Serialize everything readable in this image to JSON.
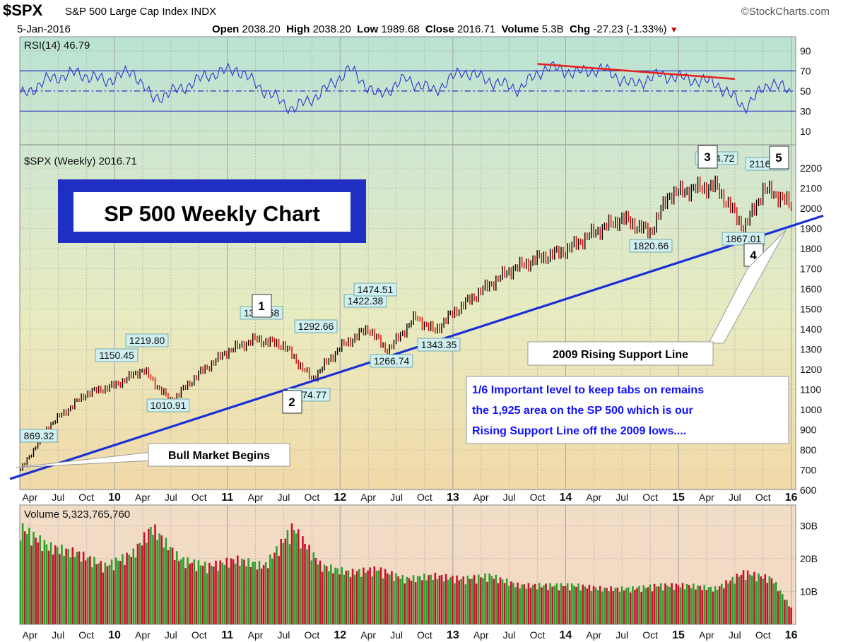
{
  "header": {
    "ticker": "$SPX",
    "name": "S&P 500 Large Cap Index",
    "exchange": "INDX",
    "source": "©StockCharts.com",
    "date": "5-Jan-2016",
    "open_label": "Open",
    "open": "2038.20",
    "high_label": "High",
    "high": "2038.20",
    "low_label": "Low",
    "low": "1989.68",
    "close_label": "Close",
    "close": "2016.71",
    "volume_label": "Volume",
    "volume": "5.3B",
    "chg_label": "Chg",
    "chg": "-27.23 (-1.33%)",
    "chg_arrow": "▼"
  },
  "colors": {
    "up_bar": "#000000",
    "down_bar": "#e00000",
    "rsi_line": "#3333cc",
    "support_line": "#1a2fd8",
    "rsi_trend_line": "#e82020",
    "up_volume": "#2e9e2e",
    "down_volume": "#c8102e",
    "title_box": "#1f2fc4",
    "note_text": "#1010ff"
  },
  "chart_data": [
    {
      "panel": "rsi",
      "type": "line",
      "label": "RSI(14) 46.79",
      "indicator": "RSI(14)",
      "last_value": 46.79,
      "ylim": [
        0,
        100
      ],
      "y_ticks": [
        "90",
        "70",
        "50",
        "30",
        "10"
      ],
      "reference_lines": [
        70,
        50,
        30
      ],
      "trend_line": {
        "x": [
          "2013-10",
          "2015-07"
        ],
        "y": [
          77,
          62
        ]
      },
      "approx_monthly_values": {
        "x": [
          "2009-03",
          "2009-06",
          "2009-09",
          "2009-12",
          "2010-03",
          "2010-05",
          "2010-08",
          "2010-11",
          "2011-02",
          "2011-05",
          "2011-08",
          "2011-11",
          "2012-02",
          "2012-05",
          "2012-08",
          "2012-11",
          "2013-02",
          "2013-05",
          "2013-08",
          "2013-11",
          "2014-02",
          "2014-05",
          "2014-08",
          "2014-11",
          "2015-02",
          "2015-05",
          "2015-08",
          "2015-11",
          "2016-01"
        ],
        "y": [
          45,
          62,
          68,
          60,
          70,
          42,
          52,
          66,
          72,
          50,
          32,
          48,
          72,
          45,
          62,
          50,
          70,
          60,
          52,
          74,
          68,
          72,
          56,
          66,
          62,
          58,
          34,
          60,
          47
        ]
      }
    },
    {
      "panel": "price",
      "type": "candlestick",
      "label": "$SPX (Weekly) 2016.71",
      "title_box": "SP 500 Weekly Chart",
      "last_value": 2016.71,
      "ylim": [
        600,
        2200
      ],
      "y_ticks": [
        "2200",
        "2100",
        "2000",
        "1900",
        "1800",
        "1700",
        "1600",
        "1500",
        "1400",
        "1300",
        "1200",
        "1100",
        "1000",
        "900",
        "800",
        "700",
        "600"
      ],
      "x_tick_labels": [
        "Apr",
        "Jul",
        "Oct",
        "10",
        "Apr",
        "Jul",
        "Oct",
        "11",
        "Apr",
        "Jul",
        "Oct",
        "12",
        "Apr",
        "Jul",
        "Oct",
        "13",
        "Apr",
        "Jul",
        "Oct",
        "14",
        "Apr",
        "Jul",
        "Oct",
        "15",
        "Apr",
        "Jul",
        "Oct",
        "16"
      ],
      "approx_closes": {
        "x": [
          "2009-03",
          "2009-06",
          "2009-08",
          "2009-10",
          "2010-01",
          "2010-04",
          "2010-07",
          "2010-10",
          "2011-01",
          "2011-04",
          "2011-07",
          "2011-10",
          "2012-01",
          "2012-04",
          "2012-06",
          "2012-09",
          "2012-11",
          "2013-01",
          "2013-04",
          "2013-07",
          "2013-10",
          "2014-01",
          "2014-04",
          "2014-07",
          "2014-10",
          "2014-12",
          "2015-03",
          "2015-05",
          "2015-08",
          "2015-10",
          "2015-11",
          "2016-01"
        ],
        "y": [
          700,
          920,
          1000,
          1080,
          1120,
          1200,
          1040,
          1180,
          1290,
          1350,
          1320,
          1150,
          1310,
          1405,
          1290,
          1460,
          1390,
          1480,
          1590,
          1690,
          1750,
          1790,
          1880,
          1950,
          1880,
          2070,
          2100,
          2110,
          1900,
          2090,
          2080,
          2016
        ]
      },
      "point_labels": [
        {
          "text": "869.32",
          "x": "2009-07",
          "y": 869.32
        },
        {
          "text": "1150.45",
          "x": "2010-01",
          "y": 1150.45
        },
        {
          "text": "1219.80",
          "x": "2010-04",
          "y": 1219.8
        },
        {
          "text": "1010.91",
          "x": "2010-07",
          "y": 1010.91
        },
        {
          "text": "1370.58",
          "x": "2011-04",
          "y": 1370.58
        },
        {
          "text": "1292.66",
          "x": "2011-10",
          "y": 1292.66
        },
        {
          "text": "1074.77",
          "x": "2011-10",
          "y": 1074.77
        },
        {
          "text": "1422.38",
          "x": "2012-04",
          "y": 1422.38
        },
        {
          "text": "1266.74",
          "x": "2012-06",
          "y": 1266.74
        },
        {
          "text": "1474.51",
          "x": "2012-09",
          "y": 1474.51
        },
        {
          "text": "1343.35",
          "x": "2012-11",
          "y": 1343.35
        },
        {
          "text": "1820.66",
          "x": "2014-10",
          "y": 1820.66
        },
        {
          "text": "2134.72",
          "x": "2015-05",
          "y": 2134.72
        },
        {
          "text": "1867.01",
          "x": "2015-08",
          "y": 1867.01
        },
        {
          "text": "2116.48",
          "x": "2015-11",
          "y": 2116.48
        }
      ],
      "wave_labels": [
        "1",
        "2",
        "3",
        "4",
        "5"
      ],
      "support_line": {
        "x": [
          "2009-03",
          "2016-01"
        ],
        "y": [
          666,
          1925
        ]
      },
      "annotations": {
        "support_label": "2009 Rising Support Line",
        "bull_label": "Bull Market Begins",
        "note_lines": [
          "1/6  Important level to keep tabs on remains",
          "the 1,925 area on the SP 500 which is our",
          "Rising Support Line off the 2009 lows...."
        ]
      }
    },
    {
      "panel": "volume",
      "type": "bar",
      "label": "Volume 5,323,765,760",
      "ylim": [
        0,
        35
      ],
      "y_unit": "B",
      "y_ticks": [
        "30B",
        "20B",
        "10B"
      ],
      "x_tick_labels": [
        "Apr",
        "Jul",
        "Oct",
        "10",
        "Apr",
        "Jul",
        "Oct",
        "11",
        "Apr",
        "Jul",
        "Oct",
        "12",
        "Apr",
        "Jul",
        "Oct",
        "13",
        "Apr",
        "Jul",
        "Oct",
        "14",
        "Apr",
        "Jul",
        "Oct",
        "15",
        "Apr",
        "Jul",
        "Oct",
        "16"
      ],
      "approx_values": {
        "x": [
          "2009-03",
          "2009-06",
          "2009-09",
          "2009-12",
          "2010-03",
          "2010-05",
          "2010-08",
          "2010-11",
          "2011-02",
          "2011-05",
          "2011-08",
          "2011-11",
          "2012-02",
          "2012-05",
          "2012-08",
          "2012-11",
          "2013-02",
          "2013-05",
          "2013-08",
          "2013-11",
          "2014-02",
          "2014-05",
          "2014-08",
          "2014-11",
          "2015-02",
          "2015-05",
          "2015-08",
          "2015-11",
          "2016-01"
        ],
        "y": [
          30,
          24,
          22,
          18,
          22,
          30,
          20,
          18,
          20,
          18,
          30,
          18,
          16,
          17,
          14,
          15,
          14,
          15,
          12,
          12,
          12,
          11,
          11,
          12,
          12,
          11,
          16,
          14,
          5
        ]
      }
    }
  ]
}
